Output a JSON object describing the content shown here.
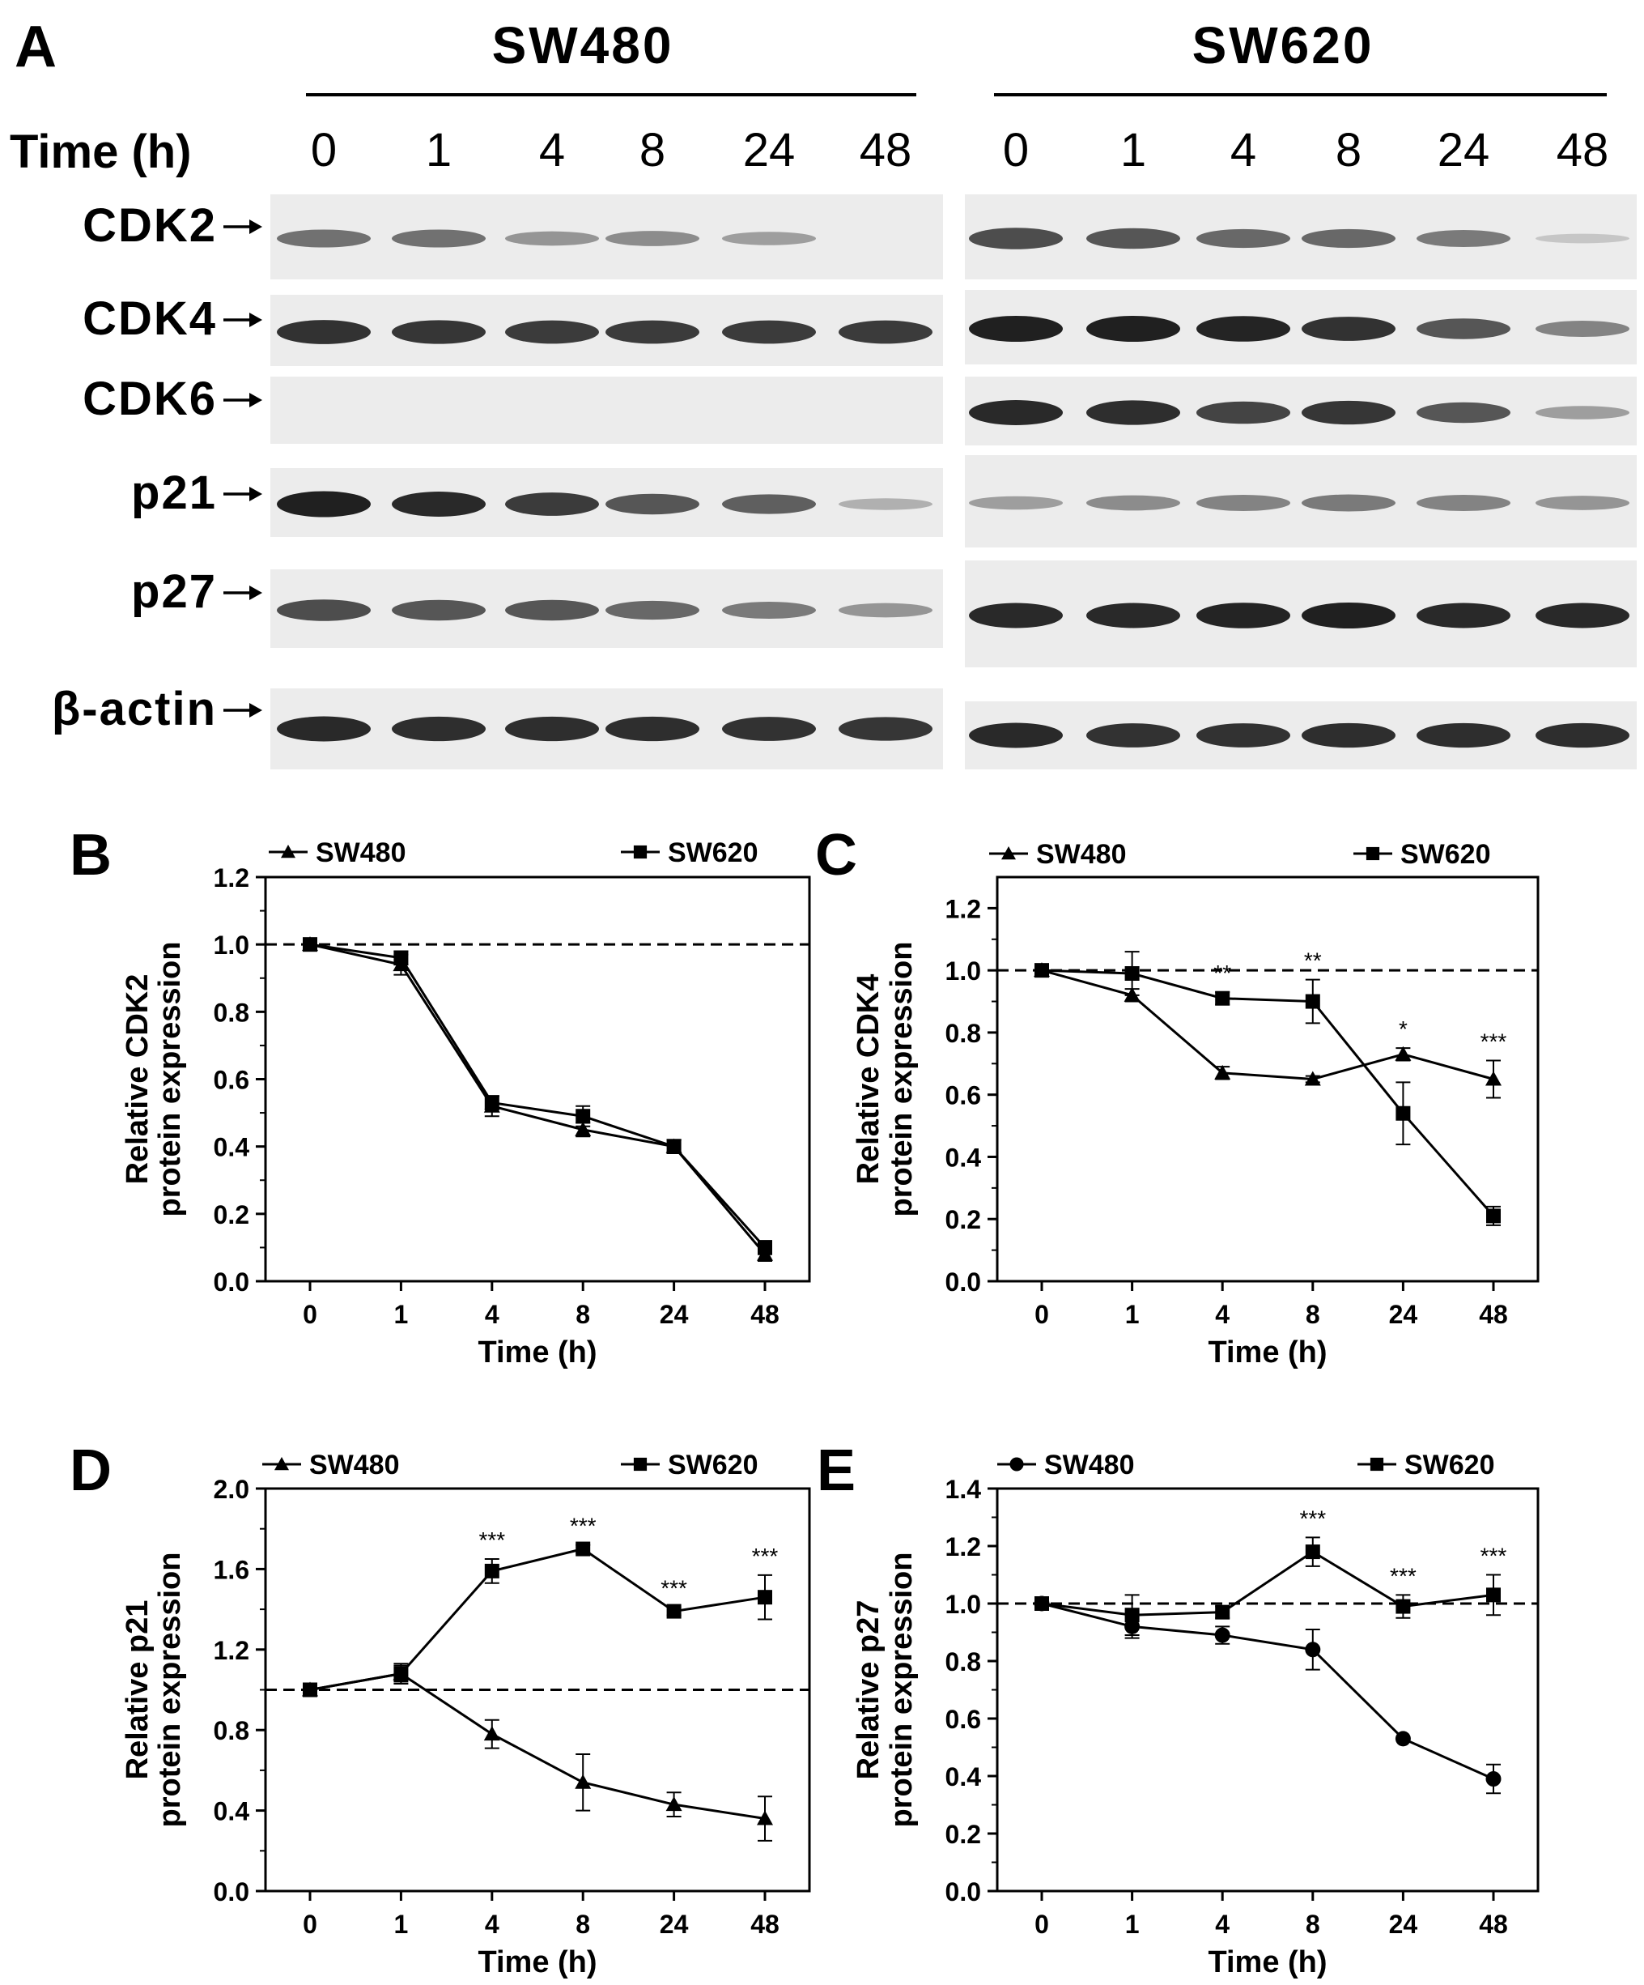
{
  "figure": {
    "panel_a": {
      "letter": "A",
      "time_label": "Time (h)",
      "cell_lines": [
        "SW480",
        "SW620"
      ],
      "timepoints": [
        "0",
        "1",
        "4",
        "8",
        "24",
        "48"
      ],
      "proteins": [
        "CDK2",
        "CDK4",
        "CDK6",
        "p21",
        "p27",
        "β-actin"
      ],
      "arrow": "→",
      "band_intensity": {
        "SW480": {
          "CDK2": [
            0.55,
            0.55,
            0.35,
            0.4,
            0.3,
            0.0
          ],
          "CDK4": [
            0.9,
            0.88,
            0.85,
            0.85,
            0.85,
            0.85
          ],
          "CDK6": [
            0,
            0,
            0,
            0,
            0,
            0
          ],
          "p21": [
            1.0,
            0.95,
            0.85,
            0.7,
            0.65,
            0.2
          ],
          "p27": [
            0.75,
            0.7,
            0.7,
            0.6,
            0.5,
            0.35
          ],
          "β-actin": [
            0.95,
            0.92,
            0.92,
            0.92,
            0.9,
            0.88
          ]
        },
        "SW620": {
          "CDK2": [
            0.75,
            0.7,
            0.6,
            0.6,
            0.5,
            0.08
          ],
          "CDK4": [
            1.0,
            1.0,
            0.98,
            0.9,
            0.7,
            0.45
          ],
          "CDK6": [
            0.95,
            0.92,
            0.8,
            0.88,
            0.7,
            0.3
          ],
          "p21": [
            0.3,
            0.4,
            0.45,
            0.5,
            0.45,
            0.35
          ],
          "p27": [
            0.95,
            0.95,
            0.98,
            1.0,
            0.95,
            0.95
          ],
          "β-actin": [
            0.95,
            0.9,
            0.9,
            0.92,
            0.92,
            0.92
          ]
        }
      }
    }
  },
  "chart_data": [
    {
      "panel": "B",
      "type": "line",
      "categories": [
        "0",
        "1",
        "4",
        "8",
        "24",
        "48"
      ],
      "xlabel": "Time (h)",
      "ylabel": [
        "Relative CDK2",
        "protein expression"
      ],
      "ylim": [
        0,
        1.2
      ],
      "yticks": [
        "0.0",
        "0.2",
        "0.4",
        "0.6",
        "0.8",
        "1.0",
        "1.2"
      ],
      "reference_line": 1.0,
      "series": [
        {
          "name": "SW480",
          "marker": "triangle",
          "values": [
            1.0,
            0.94,
            0.52,
            0.45,
            0.4,
            0.08
          ],
          "errors": [
            0,
            0.03,
            0.03,
            0.02,
            0.02,
            0.02
          ]
        },
        {
          "name": "SW620",
          "marker": "square",
          "values": [
            1.0,
            0.96,
            0.53,
            0.49,
            0.4,
            0.1
          ],
          "errors": [
            0,
            0.02,
            0.02,
            0.03,
            0.02,
            0.02
          ]
        }
      ],
      "annotations": []
    },
    {
      "panel": "C",
      "type": "line",
      "categories": [
        "0",
        "1",
        "4",
        "8",
        "24",
        "48"
      ],
      "xlabel": "Time (h)",
      "ylabel": [
        "Relative CDK4",
        "protein expression"
      ],
      "ylim": [
        0,
        1.3
      ],
      "yticks": [
        "0.0",
        "0.2",
        "0.4",
        "0.6",
        "0.8",
        "1.0",
        "1.2"
      ],
      "reference_line": 1.0,
      "series": [
        {
          "name": "SW480",
          "marker": "triangle",
          "values": [
            1.0,
            0.92,
            0.67,
            0.65,
            0.73,
            0.65
          ],
          "errors": [
            0,
            0.02,
            0.02,
            0.01,
            0.02,
            0.06
          ]
        },
        {
          "name": "SW620",
          "marker": "square",
          "values": [
            1.0,
            0.99,
            0.91,
            0.9,
            0.54,
            0.21
          ],
          "errors": [
            0,
            0.07,
            0.02,
            0.07,
            0.1,
            0.03
          ]
        }
      ],
      "annotations": [
        "",
        "",
        "**",
        "**",
        "*",
        "***"
      ]
    },
    {
      "panel": "D",
      "type": "line",
      "categories": [
        "0",
        "1",
        "4",
        "8",
        "24",
        "48"
      ],
      "xlabel": "Time (h)",
      "ylabel": [
        "Relative p21",
        "protein expression"
      ],
      "ylim": [
        0,
        2.0
      ],
      "yticks": [
        "0.0",
        "0.4",
        "0.8",
        "1.2",
        "1.6",
        "2.0"
      ],
      "reference_line": 1.0,
      "series": [
        {
          "name": "SW480",
          "marker": "triangle",
          "values": [
            1.0,
            1.08,
            0.78,
            0.54,
            0.43,
            0.36
          ],
          "errors": [
            0,
            0.04,
            0.07,
            0.14,
            0.06,
            0.11
          ]
        },
        {
          "name": "SW620",
          "marker": "square",
          "values": [
            1.0,
            1.08,
            1.59,
            1.7,
            1.39,
            1.46
          ],
          "errors": [
            0,
            0.05,
            0.06,
            0.02,
            0.02,
            0.11
          ]
        }
      ],
      "annotations": [
        "",
        "",
        "***",
        "***",
        "***",
        "***"
      ]
    },
    {
      "panel": "E",
      "type": "line",
      "categories": [
        "0",
        "1",
        "4",
        "8",
        "24",
        "48"
      ],
      "xlabel": "Time (h)",
      "ylabel": [
        "Relative p27",
        "protein expression"
      ],
      "ylim": [
        0,
        1.4
      ],
      "yticks": [
        "0.0",
        "0.2",
        "0.4",
        "0.6",
        "0.8",
        "1.0",
        "1.2",
        "1.4"
      ],
      "reference_line": 1.0,
      "series": [
        {
          "name": "SW480",
          "marker": "circle",
          "values": [
            1.0,
            0.92,
            0.89,
            0.84,
            0.53,
            0.39
          ],
          "errors": [
            0,
            0.04,
            0.03,
            0.07,
            0.0,
            0.05
          ]
        },
        {
          "name": "SW620",
          "marker": "square",
          "values": [
            1.0,
            0.96,
            0.97,
            1.18,
            0.99,
            1.03
          ],
          "errors": [
            0,
            0.07,
            0.02,
            0.05,
            0.04,
            0.07
          ]
        }
      ],
      "annotations": [
        "",
        "",
        "",
        "***",
        "***",
        "***"
      ]
    }
  ]
}
